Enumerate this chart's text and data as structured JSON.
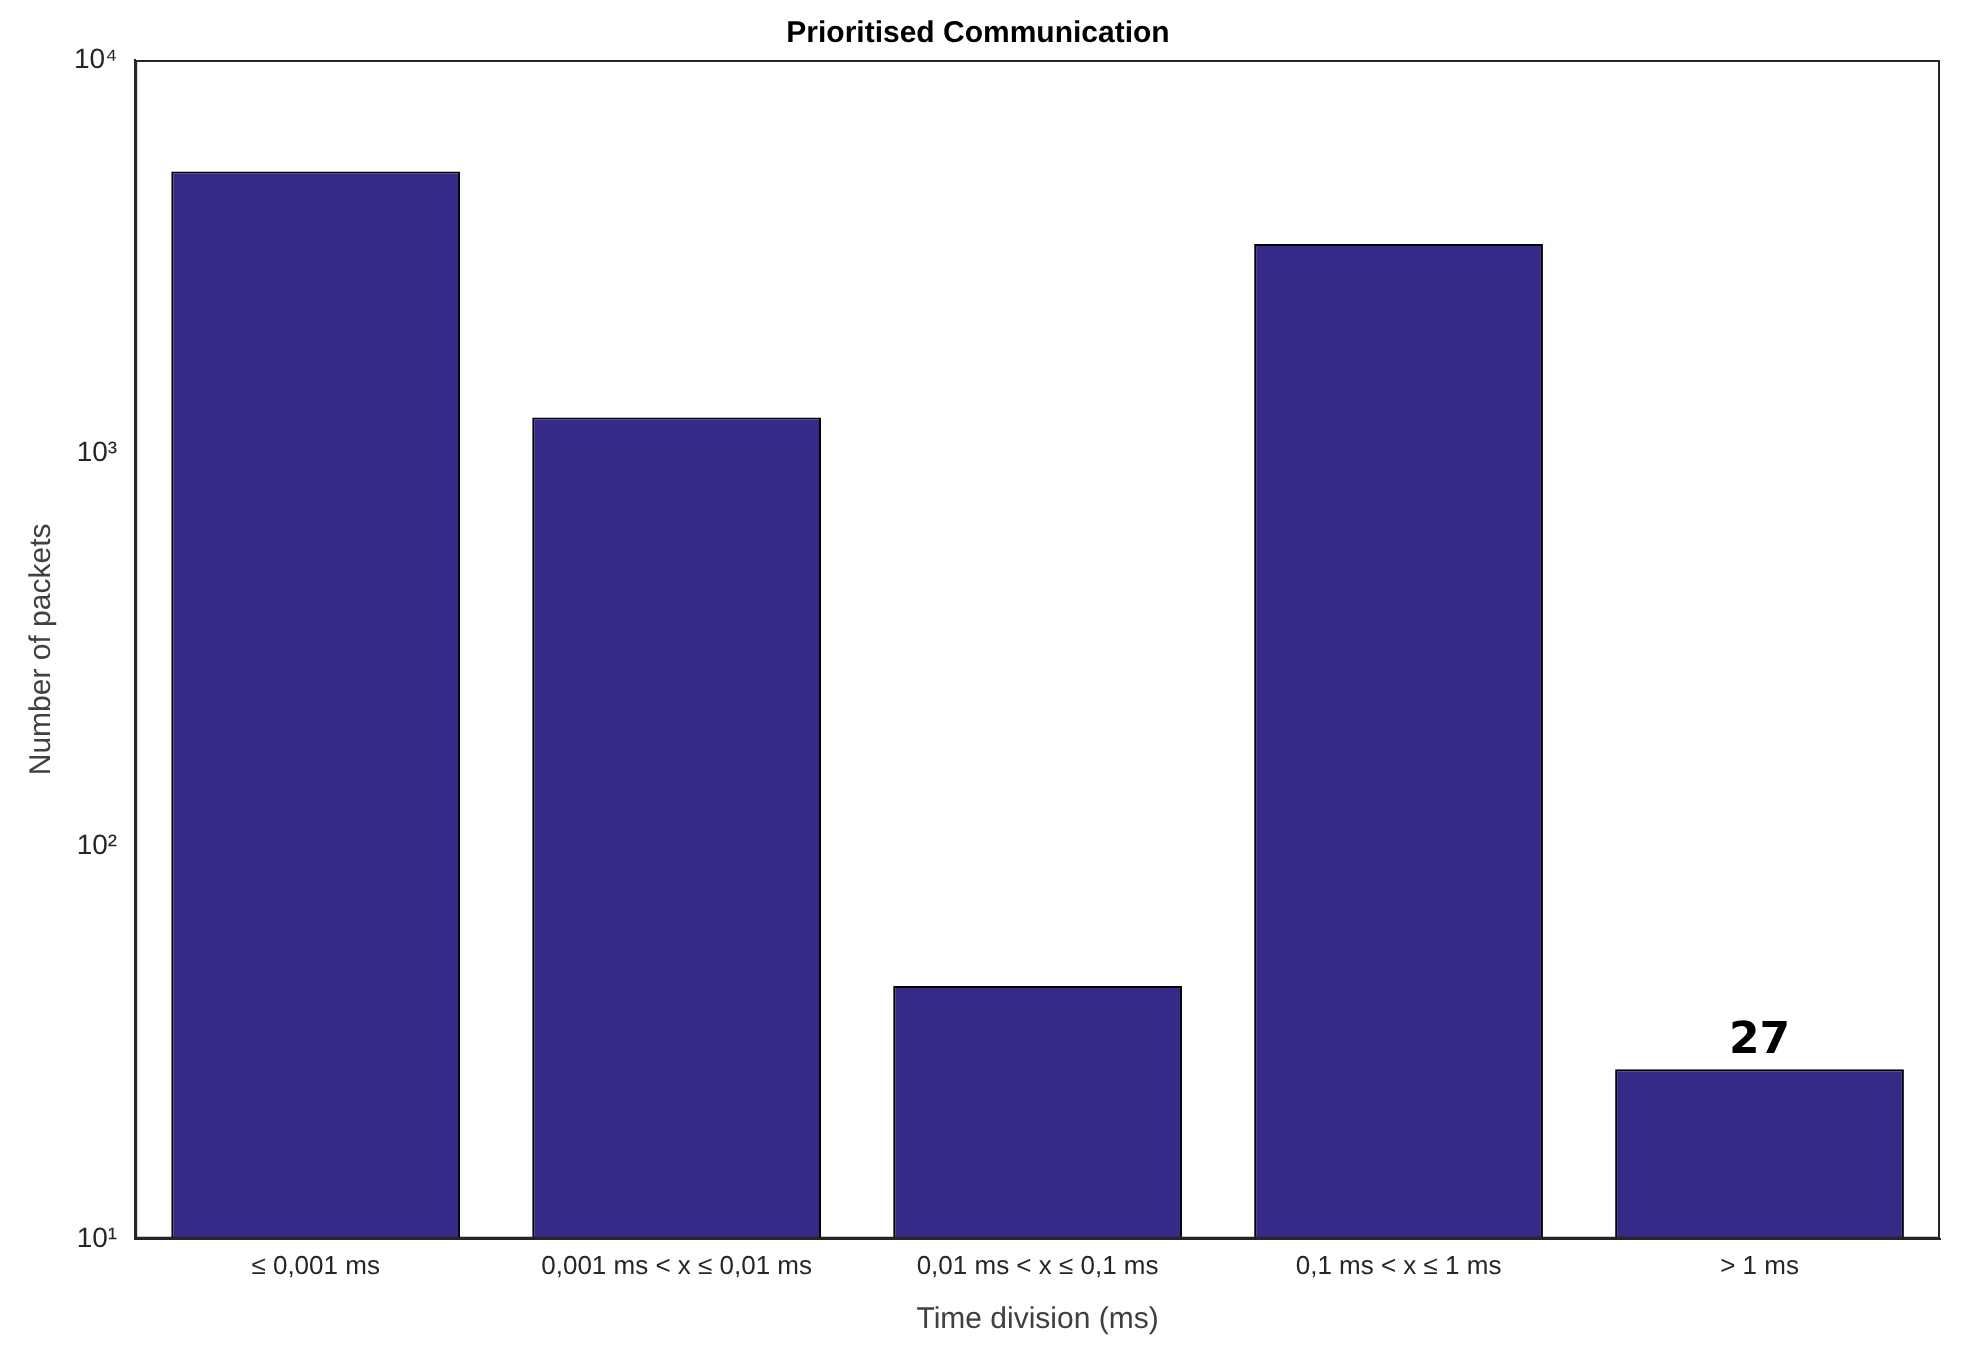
{
  "chart_data": {
    "type": "bar",
    "title": "Prioritised Communication",
    "xlabel": "Time division (ms)",
    "ylabel": "Number of packets",
    "categories": [
      "≤ 0,001 ms",
      "0,001 ms < x ≤ 0,01 ms",
      "0,01 ms < x ≤ 0,1 ms",
      "0,1 ms < x ≤ 1 ms",
      "> 1 ms"
    ],
    "values": [
      5200,
      1230,
      44,
      3400,
      27
    ],
    "value_labels": [
      null,
      null,
      null,
      null,
      "27"
    ],
    "color": "#352a87",
    "log": "y",
    "ylim": [
      10,
      10000
    ],
    "yticks": [
      {
        "value": 10,
        "label": "10¹"
      },
      {
        "value": 100,
        "label": "10²"
      },
      {
        "value": 1000,
        "label": "10³"
      },
      {
        "value": 10000,
        "label": "10⁴"
      }
    ],
    "grid": false,
    "legend": false
  }
}
